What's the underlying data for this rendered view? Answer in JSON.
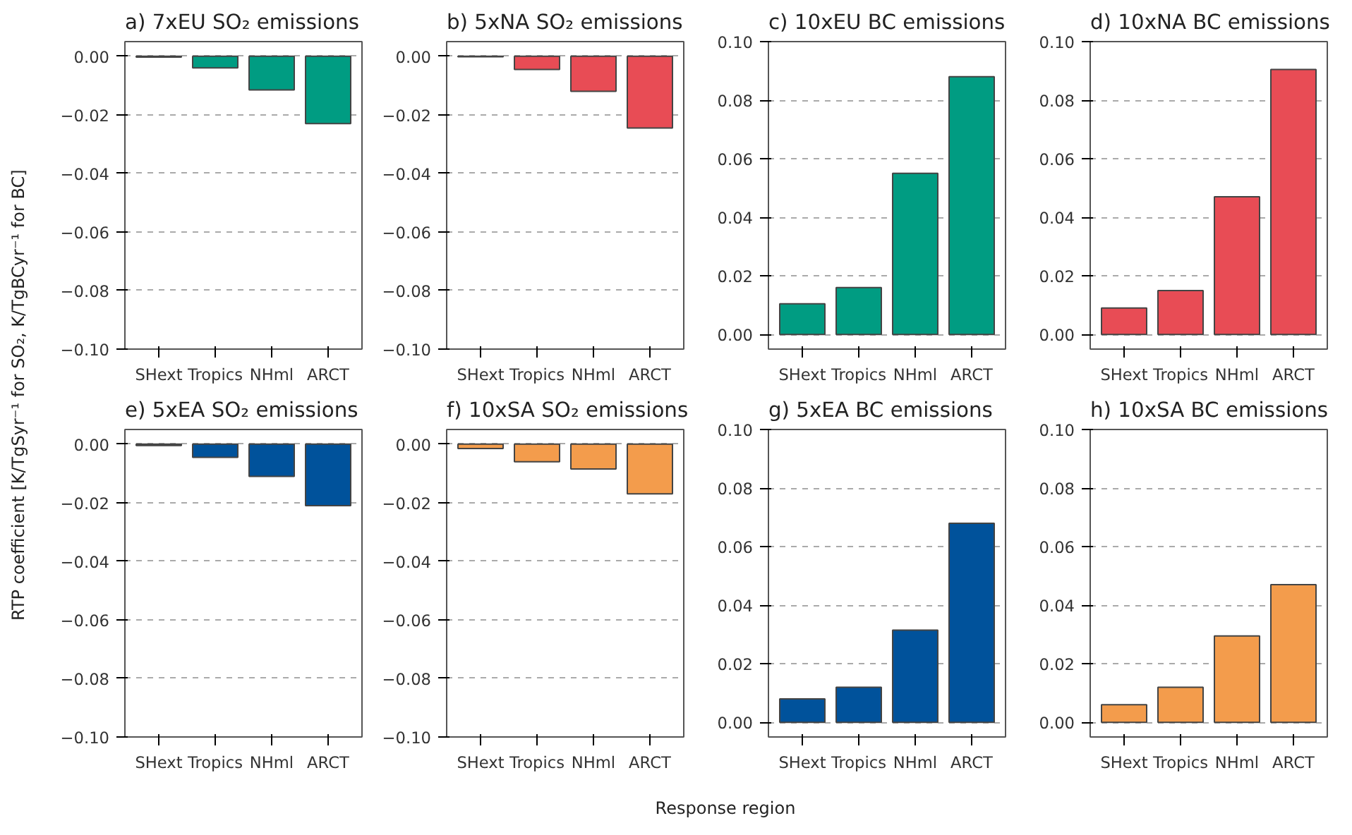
{
  "chart_data": [
    {
      "type": "bar",
      "title": "a) 7xEU SO₂ emissions",
      "ylabel": "RTP coefficient [K/TgSyr⁻¹ for SO₂, K/TgBCyr⁻¹ for BC]",
      "categories": [
        "SHext",
        "Tropics",
        "NHml",
        "ARCT"
      ],
      "values": [
        -0.0003,
        -0.004,
        -0.0115,
        -0.023
      ],
      "color": "#009c82",
      "ylim": [
        -0.1,
        0.005
      ],
      "yticks": [
        {
          "value": 0,
          "label": "0.00"
        },
        {
          "value": -0.02,
          "label": "−0.02"
        },
        {
          "value": -0.04,
          "label": "−0.04"
        },
        {
          "value": -0.06,
          "label": "−0.06"
        },
        {
          "value": -0.08,
          "label": "−0.08"
        },
        {
          "value": -0.1,
          "label": "−0.10"
        }
      ],
      "grid": "y"
    },
    {
      "type": "bar",
      "title": "b) 5xNA SO₂ emissions",
      "categories": [
        "SHext",
        "Tropics",
        "NHml",
        "ARCT"
      ],
      "values": [
        -0.0002,
        -0.0045,
        -0.012,
        -0.0245
      ],
      "color": "#e84c55",
      "ylim": [
        -0.1,
        0.005
      ],
      "yticks": [
        {
          "value": 0,
          "label": "0.00"
        },
        {
          "value": -0.02,
          "label": "−0.02"
        },
        {
          "value": -0.04,
          "label": "−0.04"
        },
        {
          "value": -0.06,
          "label": "−0.06"
        },
        {
          "value": -0.08,
          "label": "−0.08"
        },
        {
          "value": -0.1,
          "label": "−0.10"
        }
      ],
      "grid": "y"
    },
    {
      "type": "bar",
      "title": "c) 10xEU BC emissions",
      "categories": [
        "SHext",
        "Tropics",
        "NHml",
        "ARCT"
      ],
      "values": [
        0.0105,
        0.016,
        0.055,
        0.088
      ],
      "color": "#009c82",
      "ylim": [
        -0.005,
        0.1
      ],
      "yticks": [
        {
          "value": 0,
          "label": "0.00"
        },
        {
          "value": 0.02,
          "label": "0.02"
        },
        {
          "value": 0.04,
          "label": "0.04"
        },
        {
          "value": 0.06,
          "label": "0.06"
        },
        {
          "value": 0.08,
          "label": "0.08"
        },
        {
          "value": 0.1,
          "label": "0.10"
        }
      ],
      "grid": "y"
    },
    {
      "type": "bar",
      "title": "d) 10xNA BC emissions",
      "categories": [
        "SHext",
        "Tropics",
        "NHml",
        "ARCT"
      ],
      "values": [
        0.009,
        0.015,
        0.047,
        0.0905
      ],
      "color": "#e84c55",
      "ylim": [
        -0.005,
        0.1
      ],
      "yticks": [
        {
          "value": 0,
          "label": "0.00"
        },
        {
          "value": 0.02,
          "label": "0.02"
        },
        {
          "value": 0.04,
          "label": "0.04"
        },
        {
          "value": 0.06,
          "label": "0.06"
        },
        {
          "value": 0.08,
          "label": "0.08"
        },
        {
          "value": 0.1,
          "label": "0.10"
        }
      ],
      "grid": "y"
    },
    {
      "type": "bar",
      "title": "e) 5xEA SO₂ emissions",
      "categories": [
        "SHext",
        "Tropics",
        "NHml",
        "ARCT"
      ],
      "values": [
        -0.0005,
        -0.0045,
        -0.011,
        -0.021
      ],
      "color": "#00529b",
      "ylim": [
        -0.1,
        0.005
      ],
      "yticks": [
        {
          "value": 0,
          "label": "0.00"
        },
        {
          "value": -0.02,
          "label": "−0.02"
        },
        {
          "value": -0.04,
          "label": "−0.04"
        },
        {
          "value": -0.06,
          "label": "−0.06"
        },
        {
          "value": -0.08,
          "label": "−0.08"
        },
        {
          "value": -0.1,
          "label": "−0.10"
        }
      ],
      "grid": "y"
    },
    {
      "type": "bar",
      "title": "f) 10xSA SO₂ emissions",
      "xlabel": "Response region",
      "categories": [
        "SHext",
        "Tropics",
        "NHml",
        "ARCT"
      ],
      "values": [
        -0.0015,
        -0.006,
        -0.0085,
        -0.017
      ],
      "color": "#f39c4c",
      "ylim": [
        -0.1,
        0.005
      ],
      "yticks": [
        {
          "value": 0,
          "label": "0.00"
        },
        {
          "value": -0.02,
          "label": "−0.02"
        },
        {
          "value": -0.04,
          "label": "−0.04"
        },
        {
          "value": -0.06,
          "label": "−0.06"
        },
        {
          "value": -0.08,
          "label": "−0.08"
        },
        {
          "value": -0.1,
          "label": "−0.10"
        }
      ],
      "grid": "y"
    },
    {
      "type": "bar",
      "title": "g) 5xEA BC emissions",
      "categories": [
        "SHext",
        "Tropics",
        "NHml",
        "ARCT"
      ],
      "values": [
        0.008,
        0.012,
        0.0315,
        0.068
      ],
      "color": "#00529b",
      "ylim": [
        -0.005,
        0.1
      ],
      "yticks": [
        {
          "value": 0,
          "label": "0.00"
        },
        {
          "value": 0.02,
          "label": "0.02"
        },
        {
          "value": 0.04,
          "label": "0.04"
        },
        {
          "value": 0.06,
          "label": "0.06"
        },
        {
          "value": 0.08,
          "label": "0.08"
        },
        {
          "value": 0.1,
          "label": "0.10"
        }
      ],
      "grid": "y"
    },
    {
      "type": "bar",
      "title": "h) 10xSA BC emissions",
      "categories": [
        "SHext",
        "Tropics",
        "NHml",
        "ARCT"
      ],
      "values": [
        0.006,
        0.012,
        0.0295,
        0.047
      ],
      "color": "#f39c4c",
      "ylim": [
        -0.005,
        0.1
      ],
      "yticks": [
        {
          "value": 0,
          "label": "0.00"
        },
        {
          "value": 0.02,
          "label": "0.02"
        },
        {
          "value": 0.04,
          "label": "0.04"
        },
        {
          "value": 0.06,
          "label": "0.06"
        },
        {
          "value": 0.08,
          "label": "0.08"
        },
        {
          "value": 0.1,
          "label": "0.10"
        }
      ],
      "grid": "y"
    }
  ]
}
